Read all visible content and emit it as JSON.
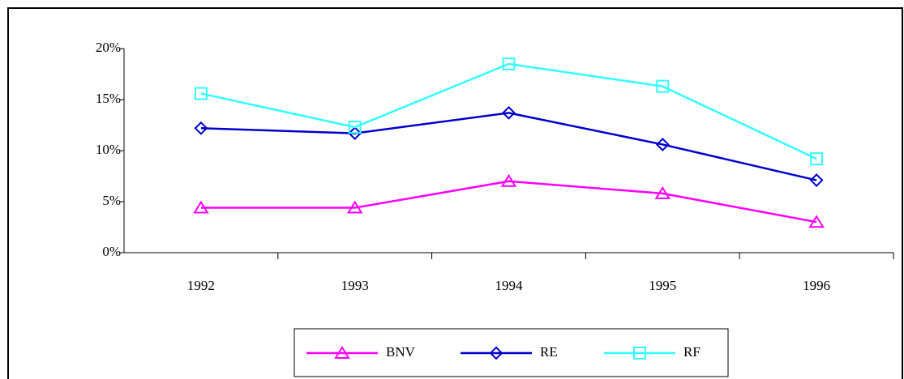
{
  "chart_data": {
    "type": "line",
    "categories": [
      "1992",
      "1993",
      "1994",
      "1995",
      "1996"
    ],
    "series": [
      {
        "name": "BNV",
        "color": "#ff00ff",
        "marker": "triangle",
        "values": [
          4.4,
          4.4,
          7.0,
          5.8,
          3.0
        ]
      },
      {
        "name": "RE",
        "color": "#0000cc",
        "marker": "diamond",
        "values": [
          12.2,
          11.7,
          13.7,
          10.6,
          7.1
        ]
      },
      {
        "name": "RF",
        "color": "#33ffff",
        "marker": "square",
        "values": [
          15.6,
          12.3,
          18.5,
          16.3,
          9.2
        ]
      }
    ],
    "ylim": [
      0,
      20
    ],
    "yticks": [
      {
        "value": 0,
        "label": "0%"
      },
      {
        "value": 5,
        "label": "5%"
      },
      {
        "value": 10,
        "label": "10%"
      },
      {
        "value": 15,
        "label": "15%"
      },
      {
        "value": 20,
        "label": "20%"
      }
    ],
    "legend": "bottom"
  }
}
